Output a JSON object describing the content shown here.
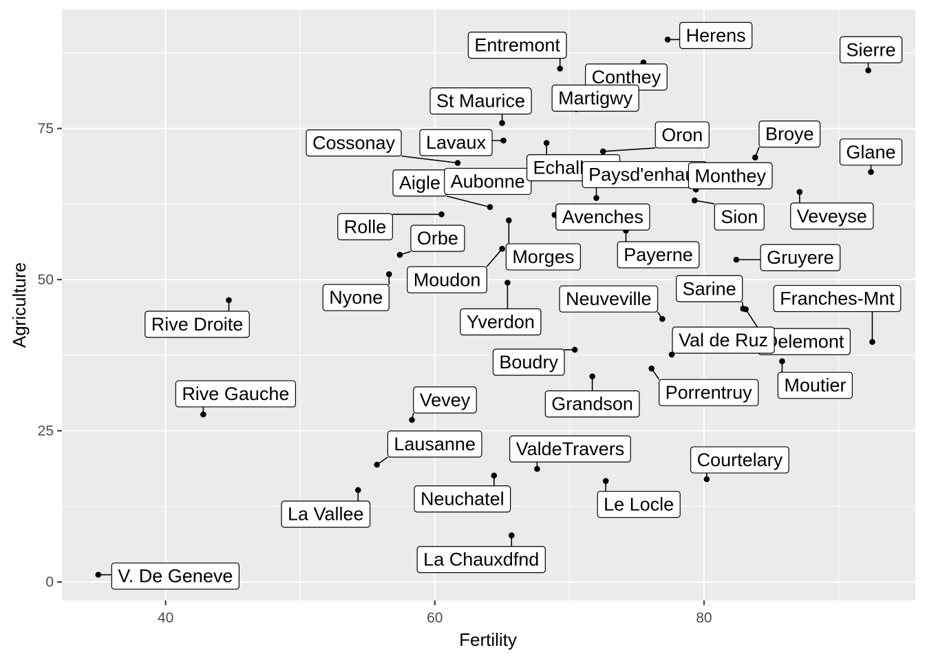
{
  "chart_data": {
    "type": "scatter",
    "title": "",
    "xlabel": "Fertility",
    "ylabel": "Agriculture",
    "xlim": [
      32.3,
      95.7
    ],
    "ylim": [
      -3.05,
      94.65
    ],
    "xticks": [
      40,
      60,
      80
    ],
    "yticks": [
      0,
      25,
      50,
      75
    ],
    "grid": true,
    "legend": "none",
    "point_color": "#000000",
    "points": [
      {
        "name": "Courtelary",
        "x": 80.2,
        "y": 17.0,
        "dx": 48,
        "dy": -28
      },
      {
        "name": "Delemont",
        "x": 83.1,
        "y": 45.1,
        "dx": 85,
        "dy": 47
      },
      {
        "name": "Franches-Mnt",
        "x": 92.5,
        "y": 39.7,
        "dx": -51,
        "dy": -63
      },
      {
        "name": "Moutier",
        "x": 85.8,
        "y": 36.5,
        "dx": 48,
        "dy": 35
      },
      {
        "name": "Neuveville",
        "x": 76.9,
        "y": 43.5,
        "dx": -78,
        "dy": -29
      },
      {
        "name": "Porrentruy",
        "x": 76.1,
        "y": 35.3,
        "dx": 83,
        "dy": 35
      },
      {
        "name": "Broye",
        "x": 83.8,
        "y": 70.2,
        "dx": 50,
        "dy": -34
      },
      {
        "name": "Glane",
        "x": 92.4,
        "y": 67.8,
        "dx": 0,
        "dy": -29
      },
      {
        "name": "Gruyere",
        "x": 82.4,
        "y": 53.3,
        "dx": 93,
        "dy": -3
      },
      {
        "name": "Sarine",
        "x": 82.9,
        "y": 45.2,
        "dx": -49,
        "dy": -29
      },
      {
        "name": "Veveyse",
        "x": 87.1,
        "y": 64.5,
        "dx": 47,
        "dy": 35
      },
      {
        "name": "Aigle",
        "x": 64.1,
        "y": 62.0,
        "dx": -102,
        "dy": -35
      },
      {
        "name": "Aubonne",
        "x": 66.9,
        "y": 67.5,
        "dx": -58,
        "dy": 11
      },
      {
        "name": "Avenches",
        "x": 68.9,
        "y": 60.7,
        "dx": 70,
        "dy": 3
      },
      {
        "name": "Cossonay",
        "x": 61.7,
        "y": 69.3,
        "dx": -151,
        "dy": -29
      },
      {
        "name": "Echallens",
        "x": 68.3,
        "y": 72.6,
        "dx": 39,
        "dy": 36
      },
      {
        "name": "Grandson",
        "x": 71.7,
        "y": 34.0,
        "dx": 0,
        "dy": 40
      },
      {
        "name": "Lausanne",
        "x": 55.7,
        "y": 19.4,
        "dx": 84,
        "dy": -30
      },
      {
        "name": "La Vallee",
        "x": 54.3,
        "y": 15.2,
        "dx": -47,
        "dy": 35
      },
      {
        "name": "Lavaux",
        "x": 65.1,
        "y": 73.0,
        "dx": -69,
        "dy": 3
      },
      {
        "name": "Morges",
        "x": 65.5,
        "y": 59.8,
        "dx": 50,
        "dy": 53
      },
      {
        "name": "Moudon",
        "x": 65.0,
        "y": 55.1,
        "dx": -80,
        "dy": 45
      },
      {
        "name": "Nyone",
        "x": 56.6,
        "y": 50.9,
        "dx": -48,
        "dy": 34
      },
      {
        "name": "Orbe",
        "x": 57.4,
        "y": 54.1,
        "dx": 55,
        "dy": -24
      },
      {
        "name": "Oron",
        "x": 72.5,
        "y": 71.2,
        "dx": 115,
        "dy": -24
      },
      {
        "name": "Payerne",
        "x": 74.2,
        "y": 58.1,
        "dx": 47,
        "dy": 35
      },
      {
        "name": "Paysd'enhaut",
        "x": 72.0,
        "y": 63.5,
        "dx": 70,
        "dy": -34
      },
      {
        "name": "Rolle",
        "x": 60.5,
        "y": 60.8,
        "dx": -111,
        "dy": 18
      },
      {
        "name": "Vevey",
        "x": 58.3,
        "y": 26.8,
        "dx": 48,
        "dy": -29
      },
      {
        "name": "Yverdon",
        "x": 65.4,
        "y": 49.5,
        "dx": -10,
        "dy": 57
      },
      {
        "name": "Conthey",
        "x": 75.5,
        "y": 85.9,
        "dx": -25,
        "dy": 21
      },
      {
        "name": "Entremont",
        "x": 69.3,
        "y": 84.9,
        "dx": -62,
        "dy": -34
      },
      {
        "name": "Herens",
        "x": 77.3,
        "y": 89.7,
        "dx": 70,
        "dy": -6
      },
      {
        "name": "Martigwy",
        "x": 70.5,
        "y": 78.2,
        "dx": 28,
        "dy": -16
      },
      {
        "name": "Monthey",
        "x": 79.4,
        "y": 64.9,
        "dx": 50,
        "dy": -20
      },
      {
        "name": "St Maurice",
        "x": 65.0,
        "y": 75.9,
        "dx": -31,
        "dy": -32
      },
      {
        "name": "Sierre",
        "x": 92.2,
        "y": 84.6,
        "dx": 4,
        "dy": -30
      },
      {
        "name": "Sion",
        "x": 79.3,
        "y": 63.1,
        "dx": 65,
        "dy": 24
      },
      {
        "name": "Boudry",
        "x": 70.4,
        "y": 38.4,
        "dx": -67,
        "dy": 18
      },
      {
        "name": "La Chauxdfnd",
        "x": 65.7,
        "y": 7.7,
        "dx": -44,
        "dy": 35
      },
      {
        "name": "Le Locle",
        "x": 72.7,
        "y": 16.7,
        "dx": 48,
        "dy": 34
      },
      {
        "name": "Neuchatel",
        "x": 64.4,
        "y": 17.6,
        "dx": -46,
        "dy": 34
      },
      {
        "name": "Val de Ruz",
        "x": 77.6,
        "y": 37.6,
        "dx": 75,
        "dy": -21
      },
      {
        "name": "ValdeTravers",
        "x": 67.6,
        "y": 18.7,
        "dx": 48,
        "dy": -29
      },
      {
        "name": "V. De Geneve",
        "x": 35.0,
        "y": 1.2,
        "dx": 112,
        "dy": 2
      },
      {
        "name": "Rive Droite",
        "x": 44.7,
        "y": 46.6,
        "dx": -46,
        "dy": 35
      },
      {
        "name": "Rive Gauche",
        "x": 42.8,
        "y": 27.7,
        "dx": 47,
        "dy": -30
      }
    ]
  }
}
